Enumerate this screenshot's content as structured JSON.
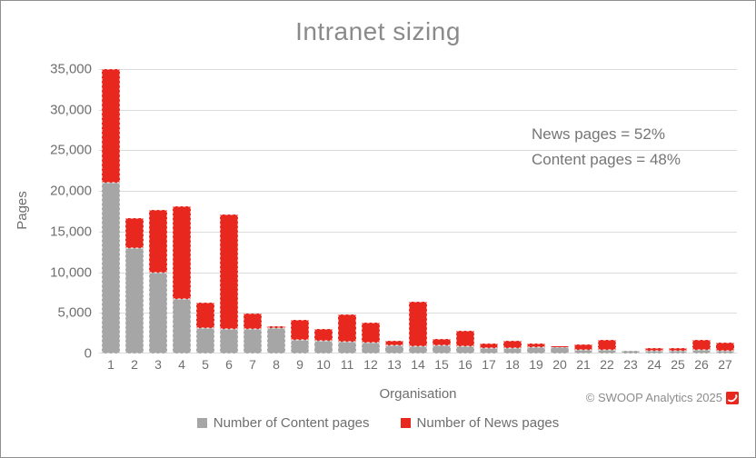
{
  "chart_data": {
    "type": "bar",
    "stacked": true,
    "title": "Intranet sizing",
    "xlabel": "Organisation",
    "ylabel": "Pages",
    "ylim": [
      0,
      35000
    ],
    "ytick_interval": 5000,
    "ytick_labels": [
      "0",
      "5,000",
      "10,000",
      "15,000",
      "20,000",
      "25,000",
      "30,000",
      "35,000"
    ],
    "grid": "horizontal",
    "legend_position": "bottom",
    "categories": [
      "1",
      "2",
      "3",
      "4",
      "5",
      "6",
      "7",
      "8",
      "9",
      "10",
      "11",
      "12",
      "13",
      "14",
      "15",
      "16",
      "17",
      "18",
      "19",
      "20",
      "21",
      "22",
      "23",
      "24",
      "25",
      "26",
      "27"
    ],
    "series": [
      {
        "name": "Number of Content pages",
        "color": "#a6a6a6",
        "values": [
          21000,
          13000,
          10000,
          6700,
          3100,
          3000,
          3000,
          3100,
          1700,
          1600,
          1400,
          1300,
          1000,
          900,
          1000,
          900,
          700,
          700,
          800,
          800,
          500,
          500,
          350,
          350,
          300,
          400,
          300
        ]
      },
      {
        "name": "Number of News pages",
        "color": "#e8281e",
        "values": [
          14000,
          3700,
          7700,
          11400,
          3100,
          14100,
          1900,
          200,
          2500,
          1400,
          3400,
          2500,
          600,
          5500,
          800,
          1900,
          600,
          900,
          400,
          100,
          700,
          1200,
          50,
          350,
          300,
          1200,
          1000
        ]
      }
    ],
    "annotation": [
      "News pages = 52%",
      "Content pages = 48%"
    ]
  },
  "footer": {
    "credit": "© SWOOP Analytics 2025"
  },
  "colors": {
    "content_bar": "#a6a6a6",
    "news_bar": "#e8281e",
    "title_text": "#8a8a8a",
    "axis_text": "#6e6e6e",
    "gridline": "#dcdcdc",
    "logo_red": "#e8281e"
  }
}
